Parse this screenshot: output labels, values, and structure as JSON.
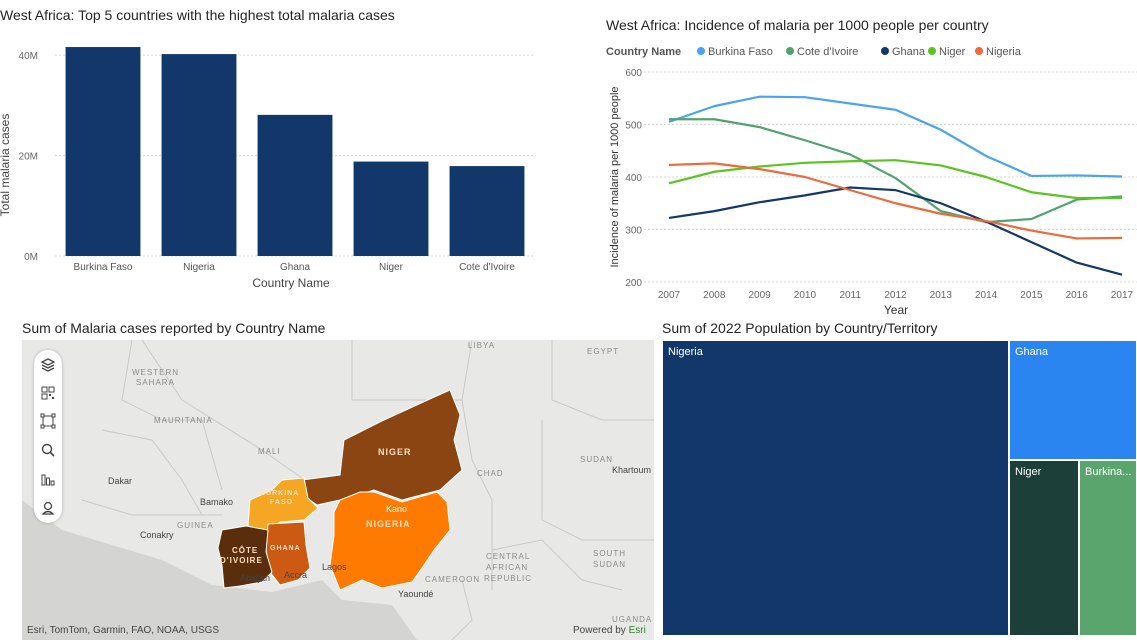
{
  "bar_title": "West Africa: Top 5 countries with the highest total malaria cases",
  "line_title": "West Africa: Incidence of malaria per 1000 people per country",
  "map_title": "Sum of Malaria cases reported by Country Name",
  "treemap_title": "Sum of 2022 Population by Country/Territory",
  "chart_data": [
    {
      "type": "bar",
      "title": "West Africa: Top 5 countries with the highest total malaria cases",
      "xlabel": "Country Name",
      "ylabel": "Total malaria cases",
      "categories": [
        "Burkina Faso",
        "Nigeria",
        "Ghana",
        "Niger",
        "Cote d'Ivoire"
      ],
      "values": [
        41600000,
        40200000,
        28100000,
        18800000,
        17900000
      ],
      "ylim": [
        0,
        44000000
      ],
      "yticks": [
        0,
        20000000,
        40000000
      ],
      "ytick_labels": [
        "0M",
        "20M",
        "40M"
      ],
      "color": "#12386b",
      "grid": true
    },
    {
      "type": "line",
      "title": "West Africa: Incidence of malaria per 1000 people per country",
      "xlabel": "Year",
      "ylabel": "Incidence of malaria per 1000 people",
      "legend_title": "Country Name",
      "legend_position": "top-left",
      "x": [
        2007,
        2008,
        2009,
        2010,
        2011,
        2012,
        2013,
        2014,
        2015,
        2016,
        2017
      ],
      "ylim": [
        200,
        600
      ],
      "yticks": [
        200,
        300,
        400,
        500,
        600
      ],
      "grid": true,
      "series": [
        {
          "name": "Burkina Faso",
          "color": "#4aa3f5",
          "values": [
            505,
            535,
            553,
            552,
            540,
            528,
            490,
            440,
            402,
            403,
            401
          ]
        },
        {
          "name": "Cote d'Ivoire",
          "color": "#52a26f",
          "values": [
            510,
            510,
            495,
            470,
            443,
            398,
            335,
            314,
            320,
            357,
            363
          ]
        },
        {
          "name": "Ghana",
          "color": "#12386b",
          "values": [
            322,
            335,
            352,
            365,
            380,
            375,
            350,
            315,
            276,
            237,
            214
          ]
        },
        {
          "name": "Niger",
          "color": "#5cc421",
          "values": [
            388,
            410,
            420,
            427,
            430,
            432,
            422,
            400,
            371,
            360,
            360
          ]
        },
        {
          "name": "Nigeria",
          "color": "#ec6a3c",
          "values": [
            423,
            426,
            415,
            400,
            375,
            350,
            330,
            316,
            298,
            283,
            284
          ]
        }
      ]
    }
  ],
  "map": {
    "place_labels": {
      "western_sahara_1": "WESTERN",
      "western_sahara_2": "SAHARA",
      "mauritania": "MAURITANIA",
      "mali": "MALI",
      "libya": "LIBYA",
      "egypt": "EGYPT",
      "chad": "CHAD",
      "sudan": "SUDAN",
      "khartoum": "Khartoum",
      "dakar": "Dakar",
      "bamako": "Bamako",
      "guinea": "GUINEA",
      "conakry": "Conakry",
      "cote_divoire_1": "CÔTE",
      "cote_divoire_2": "D'IVOIRE",
      "abidjan": "Abidjan",
      "ghana": "GHANA",
      "accra": "Accra",
      "burkina_1": "BURKINA",
      "burkina_2": "FASO",
      "niger": "NIGER",
      "nigeria": "NIGERIA",
      "kano": "Kano",
      "lagos": "Lagos",
      "cameroon": "CAMEROON",
      "yaounde": "Yaoundé",
      "car_1": "CENTRAL",
      "car_2": "AFRICAN",
      "car_3": "REPUBLIC",
      "south_sudan_1": "SOUTH",
      "south_sudan_2": "SUDAN",
      "uganda": "UGANDA"
    },
    "country_colors": {
      "niger": "#8b4513",
      "nigeria": "#ff7a00",
      "burkina": "#f5a623",
      "ghana": "#cd5a12",
      "cote_divoire": "#5a2d0c"
    },
    "tools": [
      "layers-icon",
      "qr-select-icon",
      "rect-select-icon",
      "search-icon",
      "filter-icon",
      "pin-icon"
    ],
    "attribution": "Esri, TomTom, Garmin, FAO, NOAA, USGS",
    "powered_by": "Powered by",
    "esri": "Esri"
  },
  "treemap": {
    "items": [
      {
        "label": "Nigeria",
        "color": "#12386b"
      },
      {
        "label": "Ghana",
        "color": "#2b85f0"
      },
      {
        "label": "Niger",
        "color": "#1c3f3a"
      },
      {
        "label": "Burkina...",
        "color": "#5aa46e"
      }
    ]
  }
}
